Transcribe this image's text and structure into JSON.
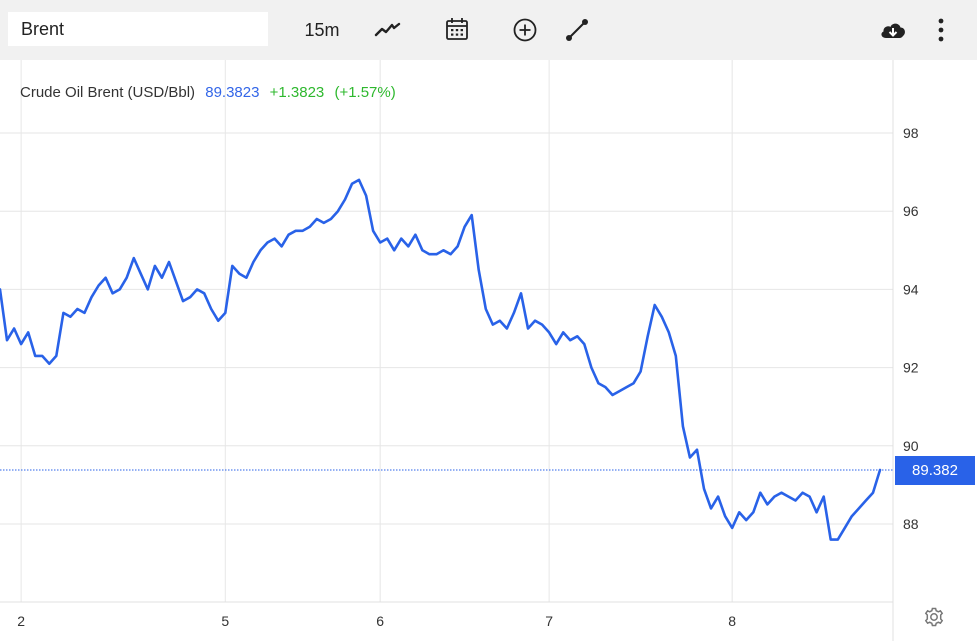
{
  "toolbar": {
    "symbol_value": "Brent",
    "interval_label": "15m",
    "icons": [
      "line-chart-icon",
      "calendar-icon",
      "add-indicator-icon",
      "drawing-tool-icon",
      "cloud-download-icon",
      "more-vertical-icon"
    ]
  },
  "legend": {
    "name": "Crude Oil Brent (USD/Bbl)",
    "price": "89.3823",
    "change": "+1.3823",
    "change_pct": "(+1.57%)"
  },
  "price_tag": "89.382",
  "colors": {
    "line": "#2962e8",
    "positive": "#2eb82e",
    "tag_bg": "#2962e8",
    "grid": "#e6e6e6"
  },
  "chart_data": {
    "type": "line",
    "title": "",
    "xlabel": "",
    "ylabel": "",
    "ylim": [
      85.2,
      99.8
    ],
    "y_ticks": [
      88,
      90,
      92,
      94,
      96,
      98
    ],
    "x_ticks": [
      {
        "label": "2",
        "index": 3
      },
      {
        "label": "5",
        "index": 32
      },
      {
        "label": "6",
        "index": 54
      },
      {
        "label": "7",
        "index": 78
      },
      {
        "label": "8",
        "index": 104
      }
    ],
    "last_value": 89.382,
    "grid": true,
    "series": [
      {
        "values": [
          94.0,
          92.7,
          93.0,
          92.6,
          92.9,
          92.3,
          92.3,
          92.1,
          92.3,
          93.4,
          93.3,
          93.5,
          93.4,
          93.8,
          94.1,
          94.3,
          93.9,
          94.0,
          94.3,
          94.8,
          94.4,
          94.0,
          94.6,
          94.3,
          94.7,
          94.2,
          93.7,
          93.8,
          94.0,
          93.9,
          93.5,
          93.2,
          93.4,
          94.6,
          94.4,
          94.3,
          94.7,
          95.0,
          95.2,
          95.3,
          95.1,
          95.4,
          95.5,
          95.5,
          95.6,
          95.8,
          95.7,
          95.8,
          96.0,
          96.3,
          96.7,
          96.8,
          96.4,
          95.5,
          95.2,
          95.3,
          95.0,
          95.3,
          95.1,
          95.4,
          95.0,
          94.9,
          94.9,
          95.0,
          94.9,
          95.1,
          95.6,
          95.9,
          94.5,
          93.5,
          93.1,
          93.2,
          93.0,
          93.4,
          93.9,
          93.0,
          93.2,
          93.1,
          92.9,
          92.6,
          92.9,
          92.7,
          92.8,
          92.6,
          92.0,
          91.6,
          91.5,
          91.3,
          91.4,
          91.5,
          91.6,
          91.9,
          92.8,
          93.6,
          93.3,
          92.9,
          92.3,
          90.5,
          89.7,
          89.9,
          88.9,
          88.4,
          88.7,
          88.2,
          87.9,
          88.3,
          88.1,
          88.3,
          88.8,
          88.5,
          88.7,
          88.8,
          88.7,
          88.6,
          88.8,
          88.7,
          88.3,
          88.7,
          87.6,
          87.6,
          87.9,
          88.2,
          88.4,
          88.6,
          88.8,
          89.382
        ]
      }
    ]
  }
}
